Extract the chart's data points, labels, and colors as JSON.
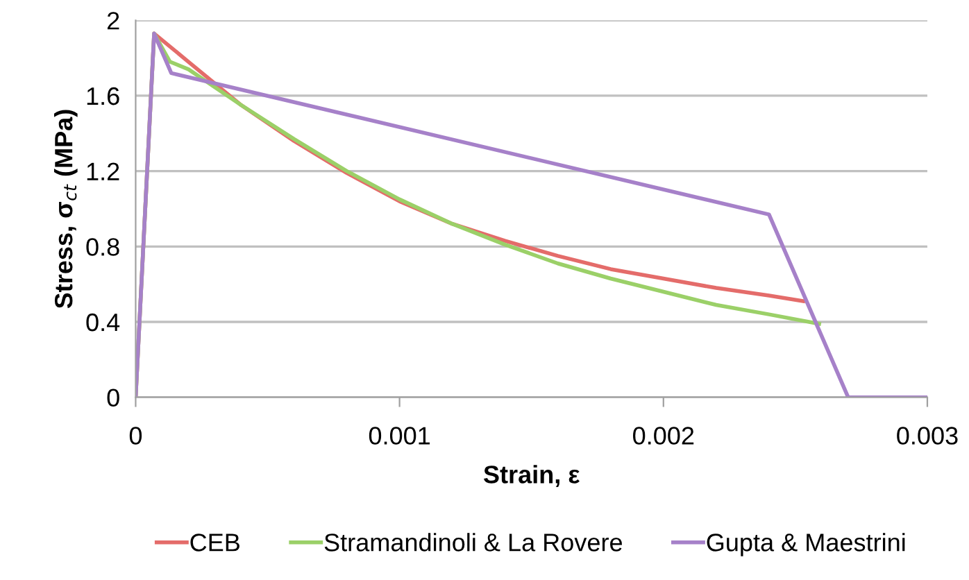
{
  "chart_data": {
    "type": "line",
    "xlabel": "Strain, ε",
    "ylabel": "Stress, σ$_{ct}$ (MPa)",
    "xlim": [
      0,
      0.003
    ],
    "xticks": [
      0,
      0.001,
      0.002,
      0.003
    ],
    "ylim": [
      0,
      2
    ],
    "yticks": [
      0,
      0.4,
      0.8,
      1.2,
      1.6,
      2
    ],
    "grid": "y",
    "legend": "bottom",
    "marker": "none",
    "line_style": "solid",
    "series": [
      {
        "name": "CEB",
        "color": "#e46c6a",
        "x": [
          0,
          7e-05,
          0.0002,
          0.0004,
          0.0006,
          0.0008,
          0.001,
          0.0012,
          0.0014,
          0.0016,
          0.0018,
          0.002,
          0.0022,
          0.0024,
          0.00253
        ],
        "values": [
          0,
          1.93,
          1.78,
          1.55,
          1.36,
          1.19,
          1.04,
          0.92,
          0.83,
          0.75,
          0.68,
          0.63,
          0.58,
          0.54,
          0.51
        ]
      },
      {
        "name": "Stramandinoli & La Rovere",
        "color": "#9bd068",
        "x": [
          0,
          7e-05,
          0.00013,
          0.0002,
          0.0004,
          0.0006,
          0.0008,
          0.001,
          0.0012,
          0.0014,
          0.0016,
          0.0018,
          0.002,
          0.0022,
          0.0024,
          0.00259
        ],
        "values": [
          0,
          1.93,
          1.78,
          1.74,
          1.55,
          1.37,
          1.2,
          1.05,
          0.92,
          0.81,
          0.71,
          0.63,
          0.56,
          0.49,
          0.44,
          0.39
        ]
      },
      {
        "name": "Gupta & Maestrini",
        "color": "#a681c9",
        "x": [
          0,
          7e-05,
          0.000135,
          0.0024,
          0.0027,
          0.003
        ],
        "values": [
          0,
          1.93,
          1.72,
          0.97,
          0,
          0
        ]
      }
    ]
  }
}
